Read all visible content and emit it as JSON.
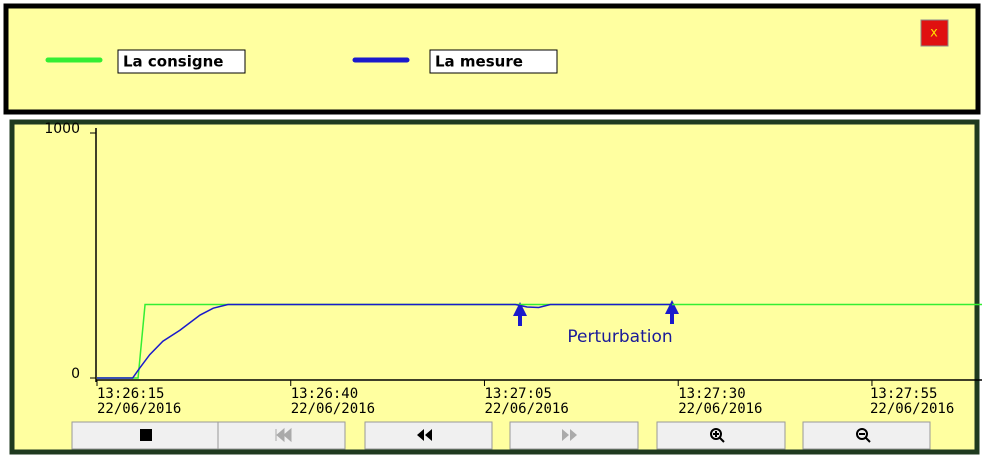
{
  "window": {
    "close": "x"
  },
  "chart_data": {
    "type": "line",
    "series": [
      {
        "name": "La consigne",
        "color": "#33ee33",
        "x": [
          0,
          5.3,
          6.2,
          114.2
        ],
        "values": [
          0,
          0,
          300,
          300
        ]
      },
      {
        "name": "La mesure",
        "color": "#1a1acc",
        "x": [
          0,
          4.6,
          5.5,
          6.8,
          8.5,
          10.7,
          13.3,
          15,
          16.9,
          54,
          55.5,
          57,
          58.5,
          74.2
        ],
        "values": [
          0,
          0,
          40,
          95,
          150,
          195,
          257,
          285,
          300,
          300,
          290,
          288,
          300,
          300
        ]
      }
    ],
    "xlim": [
      0,
      114.2
    ],
    "xticks": [
      {
        "value": 0,
        "label": "13:26:15\n22/06/2016"
      },
      {
        "value": 25,
        "label": "13:26:40\n22/06/2016"
      },
      {
        "value": 50,
        "label": "13:27:05\n22/06/2016"
      },
      {
        "value": 75,
        "label": "13:27:30\n22/06/2016"
      },
      {
        "value": 100,
        "label": "13:27:55\n22/06/2016"
      }
    ],
    "ylim": [
      0,
      1000
    ],
    "yticks": [
      0,
      1000
    ],
    "annotations": [
      {
        "text": "Perturbation"
      }
    ]
  }
}
